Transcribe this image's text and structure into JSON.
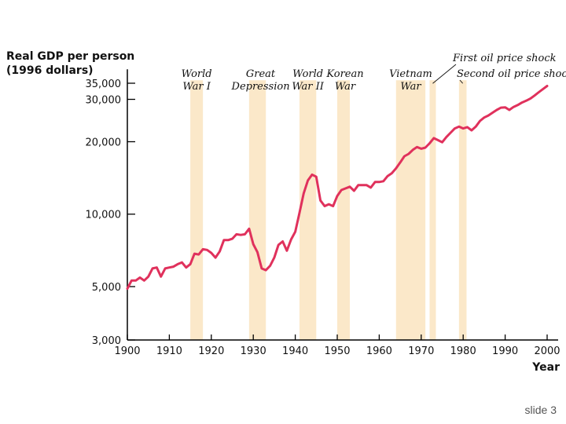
{
  "chart_data": {
    "type": "line",
    "ylabel_line1": "Real GDP per person",
    "ylabel_line2": "(1996 dollars)",
    "xlabel": "Year",
    "yscale": "log",
    "xlim": [
      1900,
      2000
    ],
    "ylim": [
      3000,
      40000
    ],
    "x_ticks": [
      1900,
      1910,
      1920,
      1930,
      1940,
      1950,
      1960,
      1970,
      1980,
      1990,
      2000
    ],
    "x_tick_labels": [
      "1900",
      "1910",
      "1920",
      "1930",
      "1940",
      "1950",
      "1960",
      "1970",
      "1980",
      "1990",
      "2000"
    ],
    "y_ticks": [
      3000,
      5000,
      10000,
      20000,
      30000,
      35000
    ],
    "y_tick_labels": [
      "3,000",
      "5,000",
      "10,000",
      "20,000",
      "30,000",
      "35,000"
    ],
    "events": [
      {
        "lines": [
          "World",
          "War I"
        ],
        "start": 1915,
        "end": 1918
      },
      {
        "lines": [
          "Great",
          "Depression"
        ],
        "start": 1929,
        "end": 1933
      },
      {
        "lines": [
          "World",
          "War II"
        ],
        "start": 1941,
        "end": 1945
      },
      {
        "lines": [
          "Korean",
          "War"
        ],
        "start": 1950,
        "end": 1953
      },
      {
        "lines": [
          "Vietnam",
          "War"
        ],
        "start": 1964,
        "end": 1971
      },
      {
        "lines": [
          "First oil price shock"
        ],
        "start": 1972,
        "end": 1973.5
      },
      {
        "lines": [
          "Second oil price shock"
        ],
        "start": 1979,
        "end": 1980.8
      }
    ],
    "series": [
      {
        "name": "Real GDP per person",
        "x": [
          1900,
          1901,
          1902,
          1903,
          1904,
          1905,
          1906,
          1907,
          1908,
          1909,
          1910,
          1911,
          1912,
          1913,
          1914,
          1915,
          1916,
          1917,
          1918,
          1919,
          1920,
          1921,
          1922,
          1923,
          1924,
          1925,
          1926,
          1927,
          1928,
          1929,
          1930,
          1931,
          1932,
          1933,
          1934,
          1935,
          1936,
          1937,
          1938,
          1939,
          1940,
          1941,
          1942,
          1943,
          1944,
          1945,
          1946,
          1947,
          1948,
          1949,
          1950,
          1951,
          1952,
          1953,
          1954,
          1955,
          1956,
          1957,
          1958,
          1959,
          1960,
          1961,
          1962,
          1963,
          1964,
          1965,
          1966,
          1967,
          1968,
          1969,
          1970,
          1971,
          1972,
          1973,
          1974,
          1975,
          1976,
          1977,
          1978,
          1979,
          1980,
          1981,
          1982,
          1983,
          1984,
          1985,
          1986,
          1987,
          1988,
          1989,
          1990,
          1991,
          1992,
          1993,
          1994,
          1995,
          1996,
          1997,
          1998,
          1999,
          2000
        ],
        "values": [
          4900,
          5300,
          5300,
          5450,
          5300,
          5500,
          5950,
          6000,
          5500,
          5950,
          6000,
          6050,
          6200,
          6300,
          6000,
          6200,
          6850,
          6800,
          7150,
          7100,
          6900,
          6600,
          7000,
          7800,
          7800,
          7900,
          8250,
          8200,
          8250,
          8700,
          7500,
          6950,
          5950,
          5850,
          6100,
          6600,
          7450,
          7700,
          7050,
          7850,
          8450,
          10100,
          12200,
          13800,
          14600,
          14300,
          11400,
          10800,
          11000,
          10800,
          11900,
          12600,
          12800,
          13000,
          12500,
          13200,
          13200,
          13200,
          12900,
          13600,
          13600,
          13700,
          14400,
          14800,
          15500,
          16400,
          17400,
          17800,
          18500,
          19000,
          18700,
          18900,
          19700,
          20700,
          20300,
          19900,
          20900,
          21800,
          22700,
          23100,
          22700,
          23000,
          22300,
          23100,
          24400,
          25200,
          25700,
          26400,
          27100,
          27700,
          27800,
          27100,
          27900,
          28400,
          29100,
          29600,
          30200,
          31100,
          32100,
          33100,
          34100
        ]
      }
    ]
  },
  "slide_label": "slide 3",
  "colors": {
    "line": "#e0315c",
    "band": "#fbe8c9",
    "axis": "#000000"
  }
}
